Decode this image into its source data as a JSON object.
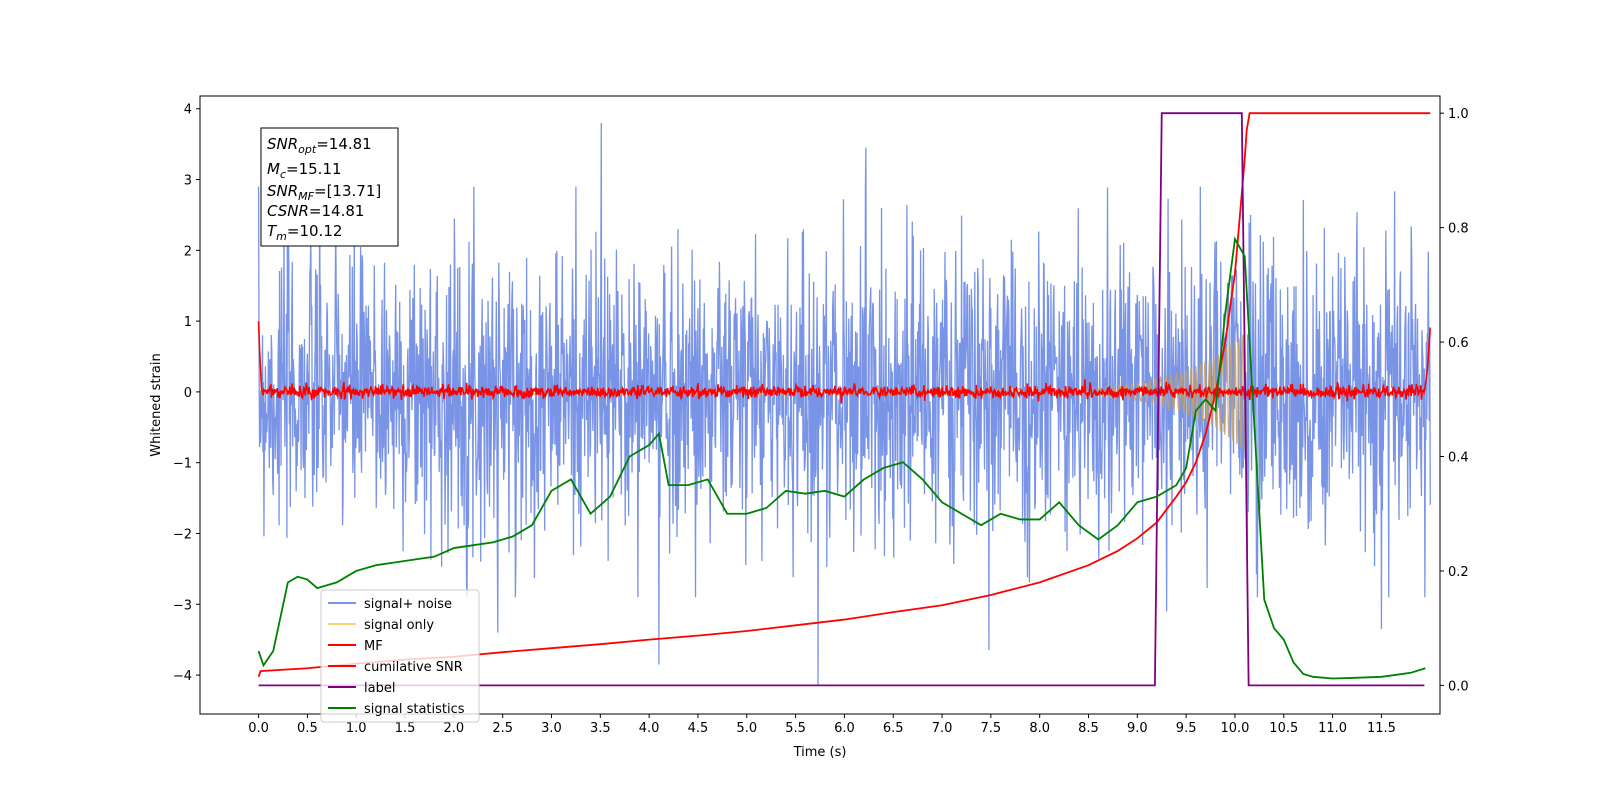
{
  "chart_data": {
    "type": "line",
    "xlabel": "Time (s)",
    "ylabel": "Whitened strain",
    "ylabel_right": "",
    "xlim": [
      -0.6,
      12.1
    ],
    "ylim": [
      -4.55,
      4.18
    ],
    "ylim_right": [
      -0.05,
      1.03
    ],
    "x_ticks": [
      "0.0",
      "0.5",
      "1.0",
      "1.5",
      "2.0",
      "2.5",
      "3.0",
      "3.5",
      "4.0",
      "4.5",
      "5.0",
      "5.5",
      "6.0",
      "6.5",
      "7.0",
      "7.5",
      "8.0",
      "8.5",
      "9.0",
      "9.5",
      "10.0",
      "10.5",
      "11.0",
      "11.5"
    ],
    "y_ticks_left": [
      "4",
      "3",
      "2",
      "1",
      "0",
      "−1",
      "−2",
      "−3",
      "−4"
    ],
    "y_ticks_right": [
      "1.0",
      "0.8",
      "0.6",
      "0.4",
      "0.2",
      "0.0"
    ],
    "annotation": {
      "snr_opt": {
        "sym": "SNR",
        "sub": "opt",
        "val": "=14.81"
      },
      "mc": {
        "sym": "M",
        "sub": "c",
        "val": "=15.11"
      },
      "snr_mf": {
        "sym": "SNR",
        "sub": "MF",
        "val": "=[13.71]"
      },
      "csnr": {
        "sym": "CSNR",
        "sub": "",
        "val": "=14.81"
      },
      "tm": {
        "sym": "T",
        "sub": "m",
        "val": "=10.12"
      }
    },
    "legend": {
      "placement": "lower-left",
      "entries": [
        {
          "label": "signal+ noise",
          "color": "#7994e6"
        },
        {
          "label": "signal only",
          "color": "#ffd27a"
        },
        {
          "label": "MF",
          "color": "#ff0000"
        },
        {
          "label": "cumilative SNR",
          "color": "#ff0000"
        },
        {
          "label": "label",
          "color": "#800080"
        },
        {
          "label": "signal statistics",
          "color": "#008000"
        }
      ]
    },
    "series": [
      {
        "name": "signal+ noise",
        "axis": "left",
        "color": "#7994e6",
        "x_range": [
          0.0,
          12.0
        ],
        "noise_std": 1.0,
        "noise_seed": 7,
        "spikes": [
          [
            3.51,
            3.8
          ],
          [
            5.73,
            -4.15
          ],
          [
            6.22,
            3.45
          ],
          [
            4.1,
            -3.85
          ],
          [
            7.48,
            -3.65
          ],
          [
            9.3,
            -3.1
          ],
          [
            10.16,
            2.5
          ],
          [
            11.5,
            -3.35
          ],
          [
            2.45,
            -3.4
          ]
        ]
      },
      {
        "name": "signal only",
        "axis": "left",
        "color": "#c8a060",
        "envelope": {
          "x": [
            0.0,
            8.5,
            9.0,
            9.5,
            9.8,
            10.0,
            10.1
          ],
          "amp": [
            0.02,
            0.05,
            0.12,
            0.3,
            0.5,
            0.72,
            0.85
          ]
        },
        "f_start_hz": 2.0,
        "f_end_hz": 25.0
      },
      {
        "name": "MF",
        "axis": "left",
        "color": "#ff0000",
        "x_range": [
          0.0,
          12.0
        ],
        "noise_std": 0.05,
        "noise_seed": 13,
        "start_x": [
          0.0,
          0.01,
          0.03
        ],
        "start_y": [
          1.0,
          0.6,
          0.05
        ],
        "end_x": [
          11.97,
          12.0
        ],
        "end_y": [
          0.3,
          0.9
        ]
      },
      {
        "name": "cumilative SNR",
        "axis": "right",
        "color": "#ff0000",
        "x": [
          0.0,
          0.02,
          0.5,
          1.0,
          1.5,
          2.0,
          2.5,
          3.0,
          3.5,
          4.0,
          4.5,
          5.0,
          5.5,
          6.0,
          6.5,
          7.0,
          7.5,
          8.0,
          8.5,
          8.8,
          9.0,
          9.2,
          9.4,
          9.5,
          9.6,
          9.7,
          9.8,
          9.9,
          10.0,
          10.05,
          10.1,
          10.12,
          10.15,
          12.0
        ],
        "y": [
          0.015,
          0.025,
          0.03,
          0.038,
          0.045,
          0.05,
          0.058,
          0.065,
          0.072,
          0.08,
          0.087,
          0.095,
          0.105,
          0.115,
          0.128,
          0.14,
          0.158,
          0.18,
          0.21,
          0.235,
          0.257,
          0.285,
          0.33,
          0.355,
          0.39,
          0.44,
          0.51,
          0.6,
          0.72,
          0.82,
          0.92,
          0.97,
          1.0,
          1.0
        ]
      },
      {
        "name": "label",
        "axis": "right",
        "color": "#800080",
        "x": [
          0.0,
          9.18,
          9.25,
          10.07,
          10.14,
          11.94
        ],
        "y": [
          0.0,
          0.0,
          1.0,
          1.0,
          0.0,
          0.0
        ]
      },
      {
        "name": "signal statistics",
        "axis": "right",
        "color": "#008000",
        "x": [
          0.0,
          0.05,
          0.15,
          0.3,
          0.4,
          0.5,
          0.6,
          0.7,
          0.8,
          0.9,
          1.0,
          1.1,
          1.2,
          1.4,
          1.6,
          1.8,
          2.0,
          2.2,
          2.4,
          2.6,
          2.8,
          3.0,
          3.2,
          3.4,
          3.6,
          3.8,
          4.0,
          4.1,
          4.2,
          4.4,
          4.6,
          4.8,
          5.0,
          5.2,
          5.4,
          5.6,
          5.8,
          6.0,
          6.2,
          6.4,
          6.6,
          6.8,
          7.0,
          7.2,
          7.4,
          7.6,
          7.8,
          8.0,
          8.2,
          8.4,
          8.6,
          8.8,
          9.0,
          9.2,
          9.4,
          9.5,
          9.6,
          9.7,
          9.8,
          9.9,
          10.0,
          10.1,
          10.2,
          10.3,
          10.4,
          10.5,
          10.6,
          10.7,
          10.8,
          11.0,
          11.2,
          11.5,
          11.8,
          11.95
        ],
        "y": [
          0.06,
          0.035,
          0.06,
          0.18,
          0.19,
          0.185,
          0.17,
          0.175,
          0.18,
          0.19,
          0.2,
          0.205,
          0.21,
          0.215,
          0.22,
          0.225,
          0.24,
          0.245,
          0.25,
          0.26,
          0.28,
          0.34,
          0.36,
          0.3,
          0.33,
          0.4,
          0.42,
          0.44,
          0.35,
          0.35,
          0.36,
          0.3,
          0.3,
          0.31,
          0.34,
          0.335,
          0.34,
          0.33,
          0.36,
          0.38,
          0.39,
          0.36,
          0.32,
          0.3,
          0.28,
          0.3,
          0.29,
          0.29,
          0.32,
          0.28,
          0.255,
          0.28,
          0.32,
          0.33,
          0.35,
          0.38,
          0.48,
          0.5,
          0.48,
          0.65,
          0.78,
          0.75,
          0.45,
          0.15,
          0.1,
          0.08,
          0.04,
          0.02,
          0.015,
          0.012,
          0.013,
          0.015,
          0.022,
          0.03
        ]
      }
    ]
  }
}
